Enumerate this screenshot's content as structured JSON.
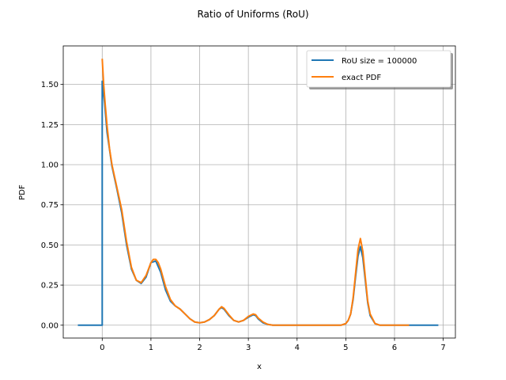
{
  "chart_data": {
    "type": "line",
    "title": "Ratio of Uniforms (RoU)",
    "xlabel": "x",
    "ylabel": "PDF",
    "xlim": [
      -0.8,
      7.25
    ],
    "ylim": [
      -0.08,
      1.74
    ],
    "xticks": [
      0,
      1,
      2,
      3,
      4,
      5,
      6,
      7
    ],
    "yticks": [
      0.0,
      0.25,
      0.5,
      0.75,
      1.0,
      1.25,
      1.5
    ],
    "xtick_labels": [
      "0",
      "1",
      "2",
      "3",
      "4",
      "5",
      "6",
      "7"
    ],
    "ytick_labels": [
      "0.00",
      "0.25",
      "0.50",
      "0.75",
      "1.00",
      "1.25",
      "1.50"
    ],
    "grid": true,
    "legend_position": "top-right",
    "series": [
      {
        "name": "RoU size = 100000",
        "color": "#1f77b4",
        "x": [
          -0.5,
          -0.01,
          0.0,
          0.0,
          0.05,
          0.1,
          0.2,
          0.3,
          0.4,
          0.5,
          0.6,
          0.7,
          0.8,
          0.9,
          1.0,
          1.1,
          1.2,
          1.3,
          1.4,
          1.5,
          1.6,
          1.7,
          1.8,
          1.9,
          2.0,
          2.1,
          2.2,
          2.3,
          2.4,
          2.45,
          2.5,
          2.6,
          2.7,
          2.8,
          2.9,
          3.0,
          3.1,
          3.15,
          3.2,
          3.3,
          3.4,
          3.5,
          3.7,
          4.0,
          4.5,
          4.9,
          5.0,
          5.05,
          5.1,
          5.15,
          5.2,
          5.25,
          5.3,
          5.35,
          5.4,
          5.45,
          5.5,
          5.6,
          5.7,
          5.9,
          6.2,
          6.5,
          6.9
        ],
        "y": [
          0.0,
          0.0,
          0.0,
          1.52,
          1.38,
          1.2,
          0.99,
          0.85,
          0.7,
          0.5,
          0.35,
          0.28,
          0.26,
          0.3,
          0.39,
          0.4,
          0.33,
          0.22,
          0.15,
          0.12,
          0.1,
          0.07,
          0.04,
          0.02,
          0.015,
          0.02,
          0.035,
          0.06,
          0.1,
          0.11,
          0.1,
          0.06,
          0.03,
          0.02,
          0.03,
          0.05,
          0.065,
          0.06,
          0.04,
          0.015,
          0.005,
          0.0,
          0.0,
          0.0,
          0.0,
          0.0,
          0.01,
          0.03,
          0.07,
          0.16,
          0.3,
          0.43,
          0.49,
          0.42,
          0.28,
          0.14,
          0.06,
          0.01,
          0.0,
          0.0,
          0.0,
          0.0,
          0.0
        ]
      },
      {
        "name": "exact PDF",
        "color": "#ff7f0e",
        "x": [
          0.0,
          0.03,
          0.06,
          0.1,
          0.15,
          0.2,
          0.3,
          0.4,
          0.5,
          0.6,
          0.7,
          0.8,
          0.9,
          1.0,
          1.05,
          1.1,
          1.15,
          1.2,
          1.3,
          1.4,
          1.5,
          1.6,
          1.7,
          1.8,
          1.9,
          2.0,
          2.1,
          2.2,
          2.3,
          2.4,
          2.45,
          2.5,
          2.6,
          2.7,
          2.8,
          2.9,
          3.0,
          3.1,
          3.15,
          3.2,
          3.3,
          3.4,
          3.5,
          3.7,
          4.0,
          4.5,
          4.9,
          5.0,
          5.05,
          5.1,
          5.15,
          5.2,
          5.25,
          5.3,
          5.35,
          5.4,
          5.45,
          5.5,
          5.6,
          5.7,
          5.9,
          6.3
        ],
        "y": [
          1.66,
          1.5,
          1.38,
          1.24,
          1.1,
          1.0,
          0.86,
          0.72,
          0.52,
          0.36,
          0.28,
          0.265,
          0.31,
          0.39,
          0.41,
          0.41,
          0.39,
          0.35,
          0.24,
          0.16,
          0.12,
          0.1,
          0.07,
          0.04,
          0.02,
          0.015,
          0.02,
          0.035,
          0.06,
          0.1,
          0.115,
          0.105,
          0.065,
          0.03,
          0.02,
          0.03,
          0.055,
          0.07,
          0.065,
          0.045,
          0.02,
          0.005,
          0.0,
          0.0,
          0.0,
          0.0,
          0.0,
          0.01,
          0.03,
          0.07,
          0.17,
          0.32,
          0.47,
          0.54,
          0.46,
          0.3,
          0.15,
          0.07,
          0.01,
          0.0,
          0.0,
          0.0
        ]
      }
    ]
  }
}
